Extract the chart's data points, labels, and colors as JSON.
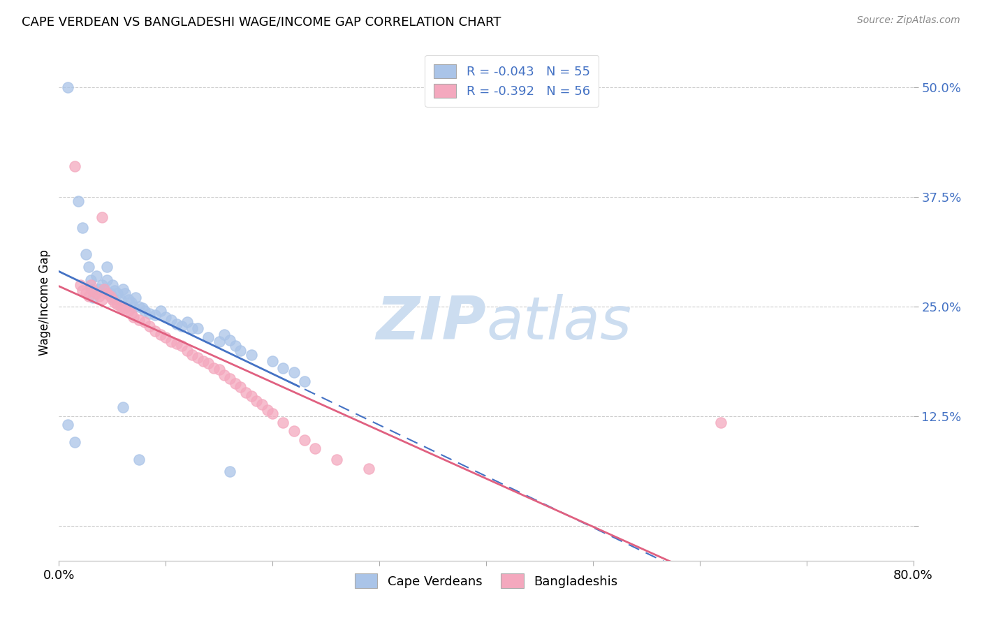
{
  "title": "CAPE VERDEAN VS BANGLADESHI WAGE/INCOME GAP CORRELATION CHART",
  "source": "Source: ZipAtlas.com",
  "ylabel": "Wage/Income Gap",
  "xlim": [
    0.0,
    0.8
  ],
  "ylim": [
    -0.04,
    0.55
  ],
  "yticks": [
    0.0,
    0.125,
    0.25,
    0.375,
    0.5
  ],
  "ytick_labels": [
    "",
    "12.5%",
    "25.0%",
    "37.5%",
    "50.0%"
  ],
  "xticks": [
    0.0,
    0.1,
    0.2,
    0.3,
    0.4,
    0.5,
    0.6,
    0.7,
    0.8
  ],
  "xtick_labels": [
    "0.0%",
    "",
    "",
    "",
    "",
    "",
    "",
    "",
    "80.0%"
  ],
  "legend_r_blue": "-0.043",
  "legend_n_blue": "55",
  "legend_r_pink": "-0.392",
  "legend_n_pink": "56",
  "blue_color": "#aac4e8",
  "pink_color": "#f4a8be",
  "blue_line_color": "#4472c4",
  "pink_line_color": "#e06080",
  "watermark_color": "#ccddf0",
  "blue_scatter_x": [
    0.008,
    0.018,
    0.022,
    0.025,
    0.028,
    0.03,
    0.03,
    0.032,
    0.035,
    0.038,
    0.04,
    0.042,
    0.045,
    0.045,
    0.048,
    0.05,
    0.05,
    0.052,
    0.055,
    0.058,
    0.06,
    0.062,
    0.065,
    0.068,
    0.07,
    0.072,
    0.075,
    0.078,
    0.08,
    0.085,
    0.09,
    0.095,
    0.1,
    0.105,
    0.11,
    0.115,
    0.12,
    0.125,
    0.13,
    0.14,
    0.15,
    0.155,
    0.16,
    0.165,
    0.17,
    0.18,
    0.2,
    0.21,
    0.22,
    0.23,
    0.008,
    0.015,
    0.06,
    0.075,
    0.16
  ],
  "blue_scatter_y": [
    0.5,
    0.37,
    0.34,
    0.31,
    0.295,
    0.28,
    0.27,
    0.26,
    0.285,
    0.27,
    0.275,
    0.27,
    0.295,
    0.28,
    0.265,
    0.275,
    0.26,
    0.268,
    0.265,
    0.258,
    0.27,
    0.265,
    0.258,
    0.255,
    0.25,
    0.26,
    0.25,
    0.248,
    0.245,
    0.242,
    0.24,
    0.245,
    0.238,
    0.235,
    0.23,
    0.228,
    0.232,
    0.225,
    0.225,
    0.215,
    0.21,
    0.218,
    0.212,
    0.205,
    0.2,
    0.195,
    0.188,
    0.18,
    0.175,
    0.165,
    0.115,
    0.095,
    0.135,
    0.075,
    0.062
  ],
  "pink_scatter_x": [
    0.015,
    0.02,
    0.022,
    0.025,
    0.028,
    0.03,
    0.032,
    0.035,
    0.038,
    0.04,
    0.042,
    0.045,
    0.048,
    0.05,
    0.052,
    0.055,
    0.058,
    0.06,
    0.062,
    0.065,
    0.068,
    0.07,
    0.075,
    0.08,
    0.085,
    0.09,
    0.095,
    0.1,
    0.105,
    0.11,
    0.115,
    0.12,
    0.125,
    0.13,
    0.135,
    0.14,
    0.145,
    0.15,
    0.155,
    0.16,
    0.165,
    0.17,
    0.175,
    0.18,
    0.185,
    0.19,
    0.195,
    0.2,
    0.21,
    0.22,
    0.23,
    0.24,
    0.26,
    0.29,
    0.62,
    0.04
  ],
  "pink_scatter_y": [
    0.41,
    0.275,
    0.268,
    0.265,
    0.262,
    0.275,
    0.268,
    0.265,
    0.262,
    0.258,
    0.27,
    0.265,
    0.262,
    0.258,
    0.255,
    0.252,
    0.25,
    0.248,
    0.248,
    0.245,
    0.242,
    0.238,
    0.235,
    0.232,
    0.228,
    0.222,
    0.218,
    0.215,
    0.21,
    0.208,
    0.205,
    0.2,
    0.195,
    0.192,
    0.188,
    0.185,
    0.18,
    0.178,
    0.172,
    0.168,
    0.162,
    0.158,
    0.152,
    0.148,
    0.142,
    0.138,
    0.132,
    0.128,
    0.118,
    0.108,
    0.098,
    0.088,
    0.075,
    0.065,
    0.118,
    0.352
  ]
}
